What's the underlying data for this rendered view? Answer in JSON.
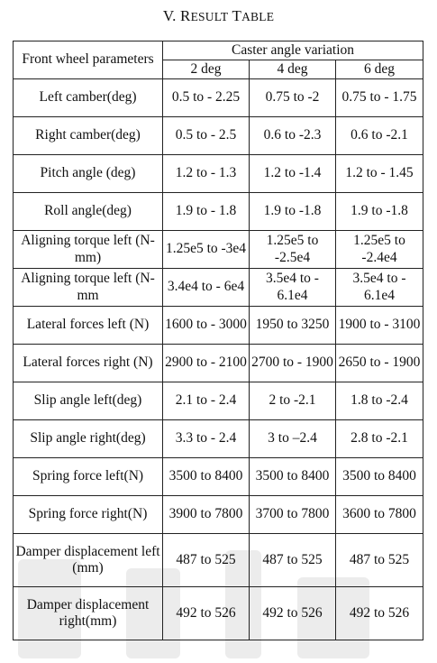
{
  "title": {
    "numeral": "V.",
    "first_letter": "R",
    "word1_rest": "ESULT",
    "word2_first": "T",
    "word2_rest": "ABLE"
  },
  "table": {
    "header_param": "Front wheel parameters",
    "header_group": "Caster angle variation",
    "columns": [
      "2 deg",
      "4 deg",
      "6 deg"
    ],
    "rows": [
      {
        "param": "Left camber(deg)",
        "values": [
          "0.5 to - 2.25",
          "0.75 to -2",
          "0.75 to - 1.75"
        ]
      },
      {
        "param": "Right camber(deg)",
        "values": [
          "0.5 to - 2.5",
          "0.6 to -2.3",
          "0.6 to -2.1"
        ]
      },
      {
        "param": "Pitch angle (deg)",
        "values": [
          "1.2 to - 1.3",
          "1.2 to -1.4",
          "1.2 to - 1.45"
        ]
      },
      {
        "param": "Roll angle(deg)",
        "values": [
          "1.9 to - 1.8",
          "1.9 to -1.8",
          "1.9 to -1.8"
        ]
      },
      {
        "param": "Aligning torque left (N-mm)",
        "values": [
          "1.25e5 to -3e4",
          "1.25e5 to -2.5e4",
          "1.25e5 to -2.4e4"
        ]
      },
      {
        "param": "Aligning torque left (N-mm",
        "values": [
          "3.4e4 to - 6e4",
          "3.5e4 to - 6.1e4",
          "3.5e4 to - 6.1e4"
        ]
      },
      {
        "param": "Lateral forces left (N)",
        "values": [
          "1600 to - 3000",
          "1950 to 3250",
          "1900 to - 3100"
        ]
      },
      {
        "param": "Lateral forces right (N)",
        "values": [
          "2900 to - 2100",
          "2700 to - 1900",
          "2650 to - 1900"
        ]
      },
      {
        "param": "Slip angle left(deg)",
        "values": [
          "2.1 to - 2.4",
          "2 to -2.1",
          "1.8 to -2.4"
        ]
      },
      {
        "param": "Slip angle right(deg)",
        "values": [
          "3.3 to - 2.4",
          "3 to –2.4",
          "2.8 to -2.1"
        ]
      },
      {
        "param": "Spring force left(N)",
        "values": [
          "3500 to 8400",
          "3500 to 8400",
          "3500 to 8400"
        ]
      },
      {
        "param": "Spring force right(N)",
        "values": [
          "3900 to 7800",
          "3700 to 7800",
          "3600 to 7800"
        ]
      },
      {
        "param": "Damper displacement left (mm)",
        "values": [
          "487 to 525",
          "487 to 525",
          "487 to 525"
        ]
      },
      {
        "param": "Damper displacement right(mm)",
        "values": [
          "492 to 526",
          "492 to 526",
          "492 to 526"
        ]
      }
    ]
  },
  "colors": {
    "text": "#111111",
    "border": "#222222",
    "watermark": "#e9e9e9"
  }
}
